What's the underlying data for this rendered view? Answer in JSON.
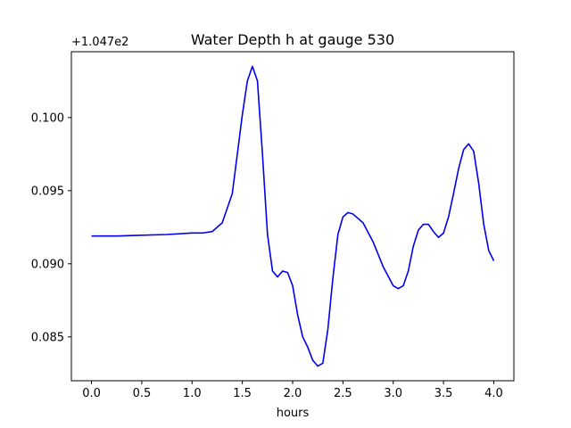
{
  "chart_data": {
    "type": "line",
    "title": "Water Depth h at gauge 530",
    "xlabel": "hours",
    "ylabel": "",
    "y_offset_label": "+1.047e2",
    "xlim": [
      -0.2,
      4.2
    ],
    "ylim": [
      0.082,
      0.1045
    ],
    "xticks": [
      0.0,
      0.5,
      1.0,
      1.5,
      2.0,
      2.5,
      3.0,
      3.5,
      4.0
    ],
    "xtick_labels": [
      "0.0",
      "0.5",
      "1.0",
      "1.5",
      "2.0",
      "2.5",
      "3.0",
      "3.5",
      "4.0"
    ],
    "yticks": [
      0.085,
      0.09,
      0.095,
      0.1
    ],
    "ytick_labels": [
      "0.085",
      "0.090",
      "0.095",
      "0.100"
    ],
    "grid": false,
    "series": [
      {
        "color": "#0000ee",
        "x": [
          0.0,
          0.25,
          0.5,
          0.75,
          1.0,
          1.1,
          1.2,
          1.3,
          1.4,
          1.45,
          1.5,
          1.55,
          1.6,
          1.65,
          1.7,
          1.75,
          1.8,
          1.85,
          1.9,
          1.95,
          2.0,
          2.05,
          2.1,
          2.15,
          2.2,
          2.25,
          2.3,
          2.35,
          2.4,
          2.45,
          2.5,
          2.55,
          2.6,
          2.65,
          2.7,
          2.8,
          2.9,
          3.0,
          3.05,
          3.1,
          3.15,
          3.2,
          3.25,
          3.3,
          3.35,
          3.4,
          3.45,
          3.5,
          3.55,
          3.6,
          3.65,
          3.7,
          3.75,
          3.8,
          3.85,
          3.9,
          3.95,
          4.0
        ],
        "y": [
          0.0919,
          0.0919,
          0.09195,
          0.092,
          0.0921,
          0.0921,
          0.0922,
          0.0928,
          0.0948,
          0.0975,
          0.1002,
          0.1025,
          0.1035,
          0.1025,
          0.0975,
          0.092,
          0.0895,
          0.0891,
          0.0895,
          0.0894,
          0.0885,
          0.0865,
          0.085,
          0.0843,
          0.0834,
          0.083,
          0.0832,
          0.0855,
          0.089,
          0.092,
          0.0932,
          0.0935,
          0.0934,
          0.0931,
          0.0928,
          0.0915,
          0.0898,
          0.0885,
          0.0883,
          0.0885,
          0.0895,
          0.0912,
          0.0923,
          0.0927,
          0.0927,
          0.0922,
          0.0918,
          0.0921,
          0.0932,
          0.0948,
          0.0965,
          0.0978,
          0.0982,
          0.0977,
          0.0955,
          0.0927,
          0.0909,
          0.0902
        ]
      }
    ]
  }
}
